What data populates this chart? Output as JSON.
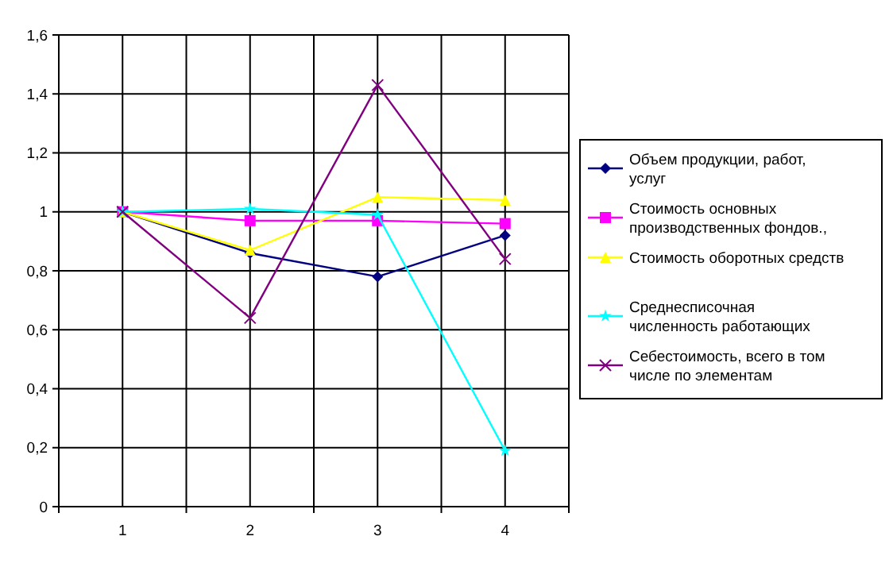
{
  "chart_data": {
    "type": "line",
    "categories": [
      "1",
      "2",
      "3",
      "4"
    ],
    "ylim": [
      0,
      1.6
    ],
    "yticks": [
      {
        "value": 0,
        "label": "0"
      },
      {
        "value": 0.2,
        "label": "0,2"
      },
      {
        "value": 0.4,
        "label": "0,4"
      },
      {
        "value": 0.6,
        "label": "0,6"
      },
      {
        "value": 0.8,
        "label": "0,8"
      },
      {
        "value": 1,
        "label": "1"
      },
      {
        "value": 1.2,
        "label": "1,2"
      },
      {
        "value": 1.4,
        "label": "1,4"
      },
      {
        "value": 1.6,
        "label": "1,6"
      }
    ],
    "grid": true,
    "legend": "right",
    "series": [
      {
        "name": "Объем продукции, работ, услуг",
        "color": "#000080",
        "marker": "diamond",
        "values": [
          1,
          0.86,
          0.78,
          0.92
        ]
      },
      {
        "name": "Стоимость основных производственных фондов.,",
        "color": "#ff00ff",
        "marker": "square",
        "values": [
          1,
          0.97,
          0.97,
          0.96
        ]
      },
      {
        "name": "Стоимость оборотных средств",
        "color": "#ffff00",
        "marker": "triangle",
        "values": [
          1,
          0.87,
          1.05,
          1.04
        ]
      },
      {
        "name": "Среднесписочная численность работающих",
        "color": "#00ffff",
        "marker": "star",
        "values": [
          1,
          1.01,
          0.99,
          0.19
        ]
      },
      {
        "name": "Себестоимость, всего в том числе по элементам",
        "color": "#800080",
        "marker": "cross",
        "values": [
          1,
          0.64,
          1.43,
          0.84
        ]
      }
    ]
  }
}
